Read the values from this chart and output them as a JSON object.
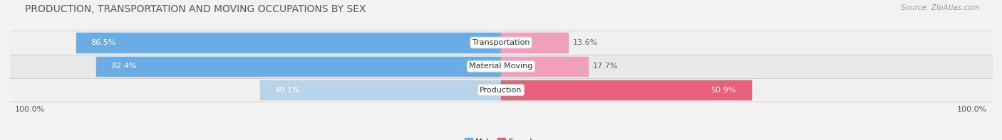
{
  "title": "PRODUCTION, TRANSPORTATION AND MOVING OCCUPATIONS BY SEX",
  "source": "Source: ZipAtlas.com",
  "categories": [
    "Transportation",
    "Material Moving",
    "Production"
  ],
  "male_values": [
    86.5,
    82.4,
    49.1
  ],
  "female_values": [
    13.6,
    17.7,
    50.9
  ],
  "male_color_trans": "#6aade4",
  "male_color_mat": "#6aade4",
  "male_color_prod": "#b8d4ea",
  "female_color_trans": "#f0a0bc",
  "female_color_mat": "#f0a0bc",
  "female_color_prod": "#e8607a",
  "row_bg_odd": "#f0f0f0",
  "row_bg_even": "#e8e8e8",
  "chart_bg": "#f2f2f2",
  "title_color": "#555555",
  "source_color": "#999999",
  "label_color": "#555555",
  "value_color_inside": "#ffffff",
  "value_color_outside": "#666666",
  "title_fontsize": 10,
  "source_fontsize": 7.5,
  "bar_label_fontsize": 8,
  "cat_label_fontsize": 8
}
